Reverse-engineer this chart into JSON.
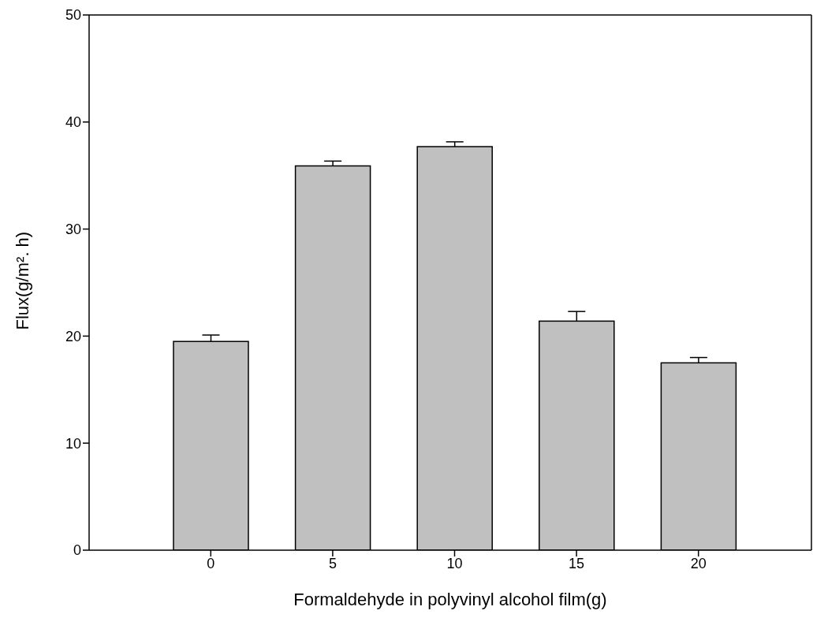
{
  "chart_data": {
    "type": "bar",
    "xlabel": "Formaldehyde in polyvinyl alcohol film(g)",
    "ylabel": "Flux(g/m². h)",
    "categories": [
      "0",
      "5",
      "10",
      "15",
      "20"
    ],
    "values": [
      19.5,
      35.9,
      37.7,
      21.4,
      17.5
    ],
    "errors": [
      0.6,
      0.45,
      0.45,
      0.9,
      0.5
    ],
    "color": "#c0c0c0",
    "ylim": [
      0,
      50
    ],
    "yticks": [
      0,
      10,
      20,
      30,
      40,
      50
    ],
    "grid": false,
    "legend": false
  }
}
